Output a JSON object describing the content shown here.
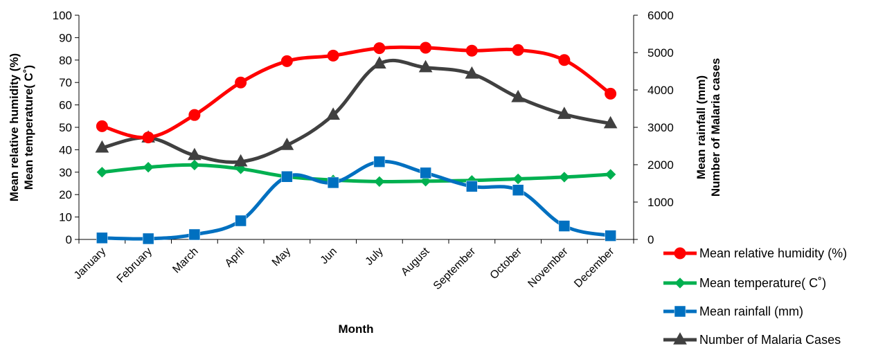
{
  "chart_data": {
    "type": "line",
    "categories": [
      "January",
      "February",
      "March",
      "April",
      "May",
      "Jun",
      "July",
      "August",
      "September",
      "October",
      "November",
      "December"
    ],
    "xlabel": "Month",
    "ylabel_left": [
      "Mean relative humidity (%)",
      "Mean temperature( C˚)"
    ],
    "ylabel_right": [
      "Mean rainfall (mm)",
      "Number of  Malaria cases"
    ],
    "ylim_left": [
      0,
      100
    ],
    "ylim_right": [
      0,
      6000
    ],
    "left_ticks": [
      "0",
      "10",
      "20",
      "30",
      "40",
      "50",
      "60",
      "70",
      "80",
      "90",
      "100"
    ],
    "right_ticks": [
      "0",
      "1000",
      "2000",
      "3000",
      "4000",
      "5000",
      "6000"
    ],
    "grid": false,
    "legend_position": "bottom-right",
    "series": [
      {
        "name": "Mean relative humidity (%)",
        "axis": "left",
        "color": "#ff0000",
        "marker": "circle",
        "values": [
          50.5,
          45.5,
          55.5,
          70,
          79.5,
          82,
          85.3,
          85.5,
          84.2,
          84.5,
          80,
          65
        ]
      },
      {
        "name": "Mean temperature( C˚)",
        "axis": "left",
        "color": "#00b050",
        "marker": "diamond",
        "values": [
          30,
          32.2,
          33.2,
          31.5,
          28,
          26.5,
          25.8,
          26,
          26.3,
          27,
          27.8,
          29
        ]
      },
      {
        "name": "Mean rainfall (mm)",
        "axis": "right",
        "color": "#0070c0",
        "marker": "square",
        "values": [
          40,
          20,
          130,
          500,
          1680,
          1520,
          2080,
          1780,
          1420,
          1320,
          360,
          100
        ]
      },
      {
        "name": "Number of Malaria Cases",
        "axis": "right",
        "color": "#404040",
        "marker": "triangle",
        "values": [
          2450,
          2720,
          2250,
          2080,
          2520,
          3330,
          4700,
          4600,
          4430,
          3800,
          3350,
          3100
        ]
      }
    ]
  }
}
